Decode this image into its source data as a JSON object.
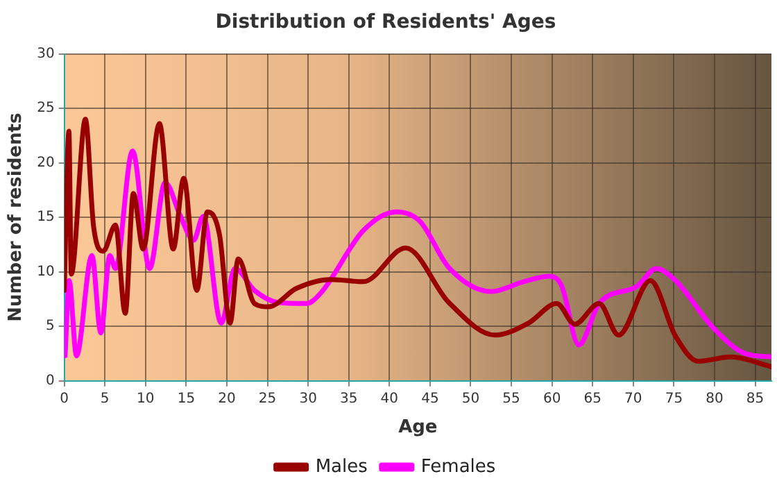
{
  "chart_data": {
    "type": "line",
    "title": "Distribution of Residents' Ages",
    "xlabel": "Age",
    "ylabel": "Number of residents",
    "xlim": [
      0,
      87
    ],
    "xticks": [
      0,
      5,
      10,
      15,
      20,
      25,
      30,
      35,
      40,
      45,
      50,
      55,
      60,
      65,
      70,
      75,
      80,
      85
    ],
    "ylim": [
      0,
      30
    ],
    "yticks": [
      0,
      5,
      10,
      15,
      20,
      25,
      30
    ],
    "grid": true,
    "legend": "bottom",
    "marker": "none",
    "line_style": "solid",
    "series": [
      {
        "name": "Males",
        "color": "#990000",
        "x": [
          0,
          0.57,
          0.86,
          2.6,
          3.6,
          4.8,
          6.3,
          7.5,
          8.5,
          9.7,
          11.7,
          13.4,
          14.7,
          16.3,
          17.6,
          19.1,
          20.4,
          21.4,
          23.4,
          25.1,
          28.6,
          32.8,
          36.8,
          42,
          47.3,
          53,
          57.1,
          60.6,
          62.8,
          65.8,
          68.2,
          72.1,
          75.2,
          78,
          82,
          87
        ],
        "values": [
          8.3,
          22.9,
          9.8,
          24,
          14.2,
          11.9,
          14.3,
          6.2,
          17.2,
          12.1,
          23.6,
          12.1,
          18.6,
          8.3,
          15.5,
          13.4,
          5.3,
          11.2,
          7.1,
          6.8,
          8.5,
          9.3,
          9.1,
          12.2,
          7.2,
          4.2,
          5.3,
          7.1,
          5.2,
          7.1,
          4.2,
          9.2,
          4.1,
          1.8,
          2.2,
          1.3
        ]
      },
      {
        "name": "Females",
        "color": "#ff00ff",
        "x": [
          0.1,
          0.6,
          1.5,
          3.4,
          4.5,
          5.6,
          6.3,
          8.4,
          10.5,
          12.4,
          14.3,
          15.9,
          17.1,
          19.3,
          21,
          23.4,
          26.3,
          29.8,
          31.6,
          36.8,
          40.9,
          43.8,
          47.3,
          52.5,
          56.5,
          59.7,
          61.2,
          63.3,
          65.8,
          70.5,
          72.8,
          75.2,
          79.8,
          83.8,
          87
        ],
        "values": [
          2.3,
          9.2,
          2.3,
          11.5,
          4.4,
          11.5,
          10.3,
          21.1,
          10.3,
          18.2,
          15.1,
          12.9,
          15.1,
          5.3,
          10.3,
          8.3,
          7.2,
          7.1,
          8.1,
          13.8,
          15.5,
          14.6,
          10.4,
          8.2,
          9.1,
          9.6,
          8.7,
          3.3,
          7.1,
          8.7,
          10.3,
          9.2,
          4.9,
          2.5,
          2.2
        ]
      }
    ]
  }
}
